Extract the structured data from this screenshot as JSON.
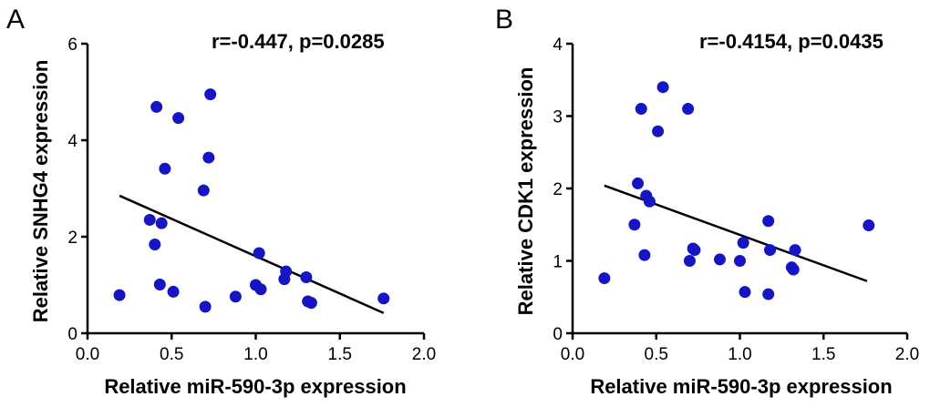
{
  "chart_data": [
    {
      "panel": "A",
      "type": "scatter",
      "xlabel": "Relative miR-590-3p expression",
      "ylabel": "Relative SNHG4 expression",
      "annotation": "r=-0.447, p=0.0285",
      "xlim": [
        0.0,
        2.0
      ],
      "ylim": [
        0,
        6
      ],
      "xticks": [
        0.0,
        0.5,
        1.0,
        1.5,
        2.0
      ],
      "xtick_labels": [
        "0.0",
        "0.5",
        "1.0",
        "1.5",
        "2.0"
      ],
      "yticks": [
        0,
        2,
        4,
        6
      ],
      "ytick_labels": [
        "0",
        "2",
        "4",
        "6"
      ],
      "points": [
        {
          "x": 0.19,
          "y": 0.79
        },
        {
          "x": 0.37,
          "y": 2.35
        },
        {
          "x": 0.4,
          "y": 1.84
        },
        {
          "x": 0.41,
          "y": 4.69
        },
        {
          "x": 0.43,
          "y": 1.01
        },
        {
          "x": 0.44,
          "y": 2.28
        },
        {
          "x": 0.46,
          "y": 3.41
        },
        {
          "x": 0.51,
          "y": 0.86
        },
        {
          "x": 0.54,
          "y": 4.46
        },
        {
          "x": 0.69,
          "y": 2.96
        },
        {
          "x": 0.7,
          "y": 0.55
        },
        {
          "x": 0.72,
          "y": 3.64
        },
        {
          "x": 0.73,
          "y": 4.95
        },
        {
          "x": 0.88,
          "y": 0.76
        },
        {
          "x": 1.0,
          "y": 1.0
        },
        {
          "x": 1.02,
          "y": 1.66
        },
        {
          "x": 1.03,
          "y": 0.91
        },
        {
          "x": 1.17,
          "y": 1.12
        },
        {
          "x": 1.18,
          "y": 1.28
        },
        {
          "x": 1.3,
          "y": 1.16
        },
        {
          "x": 1.31,
          "y": 0.66
        },
        {
          "x": 1.33,
          "y": 0.63
        },
        {
          "x": 1.76,
          "y": 0.72
        }
      ],
      "fit_line": {
        "x1": 0.19,
        "y1": 2.85,
        "x2": 1.76,
        "y2": 0.42
      }
    },
    {
      "panel": "B",
      "type": "scatter",
      "xlabel": "Relative miR-590-3p expression",
      "ylabel": "Relative CDK1 expression",
      "annotation": "r=-0.4154, p=0.0435",
      "xlim": [
        0.0,
        2.0
      ],
      "ylim": [
        0,
        4
      ],
      "xticks": [
        0.0,
        0.5,
        1.0,
        1.5,
        2.0
      ],
      "xtick_labels": [
        "0.0",
        "0.5",
        "1.0",
        "1.5",
        "2.0"
      ],
      "yticks": [
        0,
        1,
        2,
        3,
        4
      ],
      "ytick_labels": [
        "0",
        "1",
        "2",
        "3",
        "4"
      ],
      "points": [
        {
          "x": 0.19,
          "y": 0.76
        },
        {
          "x": 0.37,
          "y": 1.5
        },
        {
          "x": 0.39,
          "y": 2.07
        },
        {
          "x": 0.41,
          "y": 3.1
        },
        {
          "x": 0.43,
          "y": 1.08
        },
        {
          "x": 0.44,
          "y": 1.9
        },
        {
          "x": 0.46,
          "y": 1.82
        },
        {
          "x": 0.51,
          "y": 2.79
        },
        {
          "x": 0.54,
          "y": 3.4
        },
        {
          "x": 0.69,
          "y": 3.1
        },
        {
          "x": 0.7,
          "y": 1.0
        },
        {
          "x": 0.72,
          "y": 1.17
        },
        {
          "x": 0.73,
          "y": 1.15
        },
        {
          "x": 0.88,
          "y": 1.02
        },
        {
          "x": 1.0,
          "y": 1.0
        },
        {
          "x": 1.02,
          "y": 1.25
        },
        {
          "x": 1.03,
          "y": 0.57
        },
        {
          "x": 1.17,
          "y": 1.55
        },
        {
          "x": 1.17,
          "y": 0.54
        },
        {
          "x": 1.18,
          "y": 1.15
        },
        {
          "x": 1.31,
          "y": 0.91
        },
        {
          "x": 1.32,
          "y": 0.88
        },
        {
          "x": 1.33,
          "y": 1.15
        },
        {
          "x": 1.77,
          "y": 1.49
        }
      ],
      "fit_line": {
        "x1": 0.19,
        "y1": 2.04,
        "x2": 1.76,
        "y2": 0.72
      }
    }
  ]
}
